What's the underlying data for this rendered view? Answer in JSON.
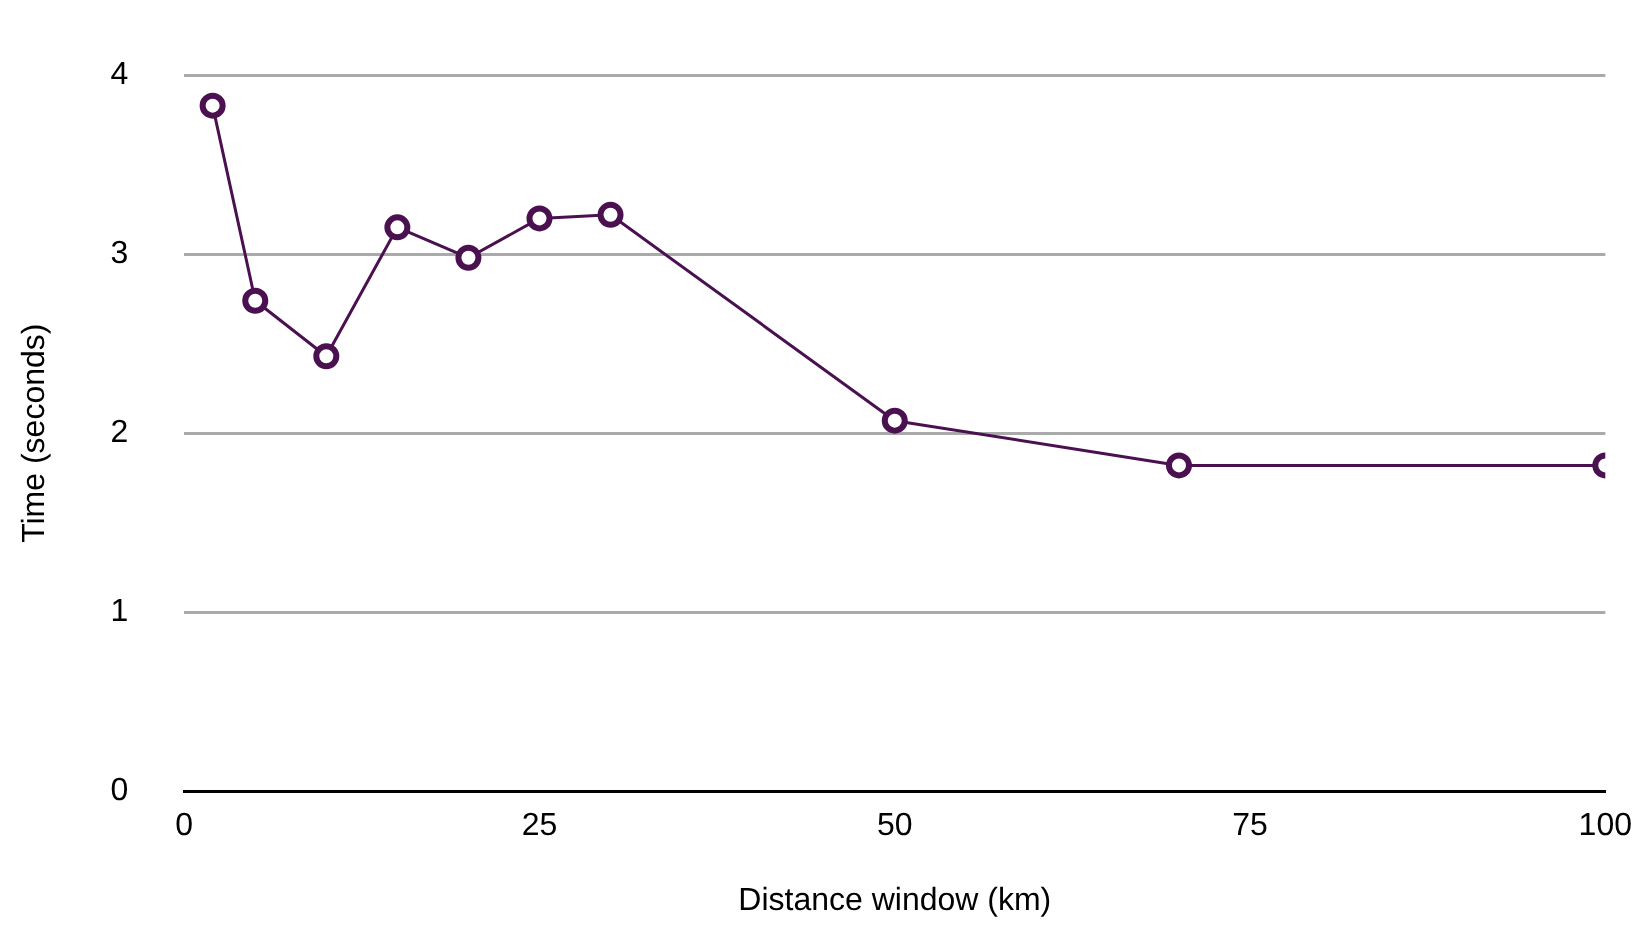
{
  "chart_data": {
    "type": "line",
    "xlabel": "Distance window (km)",
    "ylabel": "Time (seconds)",
    "x": [
      2,
      5,
      10,
      15,
      20,
      25,
      30,
      50,
      70,
      100
    ],
    "series": [
      {
        "color": "#4a1050",
        "values": [
          3.83,
          2.74,
          2.43,
          3.15,
          2.98,
          3.2,
          3.22,
          2.07,
          1.82,
          1.82
        ]
      }
    ],
    "xlim": [
      0,
      100
    ],
    "xticks": [
      0,
      25,
      50,
      75,
      100
    ],
    "ylim": [
      0,
      4
    ],
    "yticks": [
      0,
      1,
      2,
      3,
      4
    ],
    "grid": "y",
    "legend": false,
    "marker": "circle",
    "line_style": "solid"
  }
}
